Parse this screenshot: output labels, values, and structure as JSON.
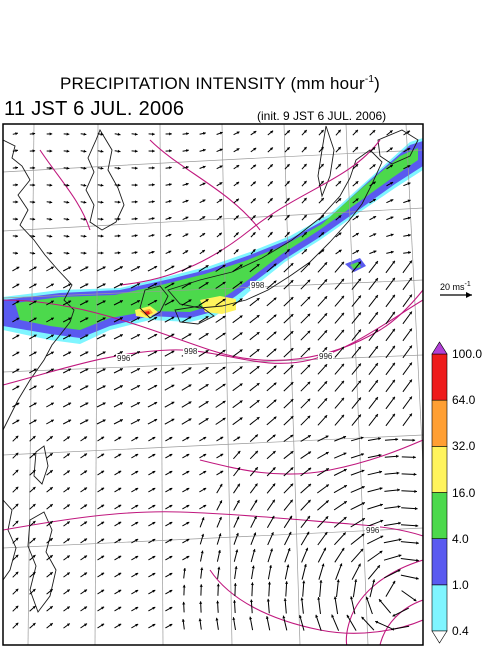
{
  "title": {
    "main": "PRECIPITATION INTENSITY (mm hour",
    "exponent": "-1",
    "close": ")"
  },
  "valid_time": "11 JST 6 JUL. 2006",
  "init_time": "(init. 9 JST 6 JUL. 2006)",
  "reference_vector": {
    "label": "20 ms",
    "exponent": "-1"
  },
  "colorbar": {
    "levels": [
      "0.4",
      "1.0",
      "4.0",
      "16.0",
      "32.0",
      "64.0",
      "100.0"
    ],
    "colors": [
      "#7ff5ff",
      "#5a5af0",
      "#4cd94c",
      "#fff45c",
      "#ff9f33",
      "#ee1b1b",
      "#b23fd6"
    ],
    "under_color": "#ffffff",
    "over_color": "#b23fd6"
  },
  "isobar_labels": [
    "996",
    "996",
    "998",
    "998",
    "996"
  ],
  "colors": {
    "isobar": "#c0187e",
    "coastline": "#1a1a1a",
    "graticule": "#9a9a9a",
    "frame": "#000000",
    "wind_vector": "#000000"
  }
}
